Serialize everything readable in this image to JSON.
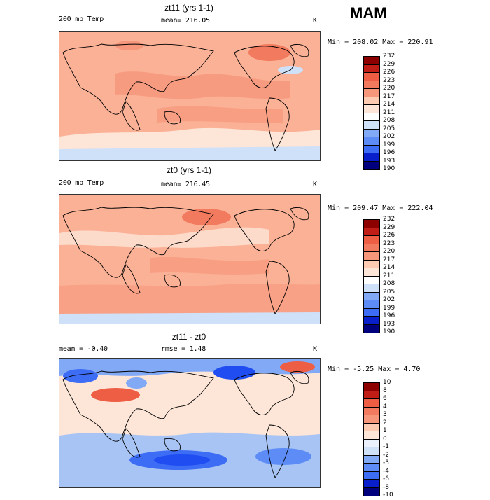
{
  "season": "MAM",
  "colors": {
    "temp_scale": [
      "#00007e",
      "#0a1fcc",
      "#1f4df2",
      "#3d6cf5",
      "#5d8cf7",
      "#82a9f5",
      "#a7c4f5",
      "#cfe0f9",
      "#ffffff",
      "#fde6d8",
      "#fdcab2",
      "#fbb196",
      "#f6967b",
      "#f27b5f",
      "#ed5e44",
      "#de3f2a",
      "#bf1d16",
      "#8c0000"
    ],
    "diff_scale": [
      "#00007e",
      "#0a1fcc",
      "#1f4df2",
      "#3d6cf5",
      "#5d8cf7",
      "#82a9f5",
      "#a7c4f5",
      "#cfe0f9",
      "#eaf1fc",
      "#fde6d8",
      "#fdcab2",
      "#fbb196",
      "#f6967b",
      "#f27b5f",
      "#ed5e44",
      "#de3f2a",
      "#bf1d16",
      "#8c0000"
    ]
  },
  "chart_data": [
    {
      "type": "heatmap",
      "title": "zt11 (yrs 1-1)",
      "left_label": "200 mb Temp",
      "center_label": "mean= 216.05",
      "unit": "K",
      "stats": "Min = 208.02 Max = 220.91",
      "colorbar_ticks": [
        "232",
        "229",
        "226",
        "223",
        "220",
        "217",
        "214",
        "211",
        "208",
        "205",
        "202",
        "199",
        "196",
        "193",
        "190"
      ]
    },
    {
      "type": "heatmap",
      "title": "zt0 (yrs 1-1)",
      "left_label": "200 mb Temp",
      "center_label": "mean= 216.45",
      "unit": "K",
      "stats": "Min = 209.47 Max = 222.04",
      "colorbar_ticks": [
        "232",
        "229",
        "226",
        "223",
        "220",
        "217",
        "214",
        "211",
        "208",
        "205",
        "202",
        "199",
        "196",
        "193",
        "190"
      ]
    },
    {
      "type": "heatmap",
      "title": "zt11 - zt0",
      "left_label": "mean =  -0.40",
      "center_label": "rmse =   1.48",
      "unit": "K",
      "stats": "Min =  -5.25 Max =   4.70",
      "colorbar_ticks": [
        "10",
        "8",
        "6",
        "4",
        "3",
        "2",
        "1",
        "0",
        "-1",
        "-2",
        "-3",
        "-4",
        "-6",
        "-8",
        "-10"
      ]
    }
  ]
}
